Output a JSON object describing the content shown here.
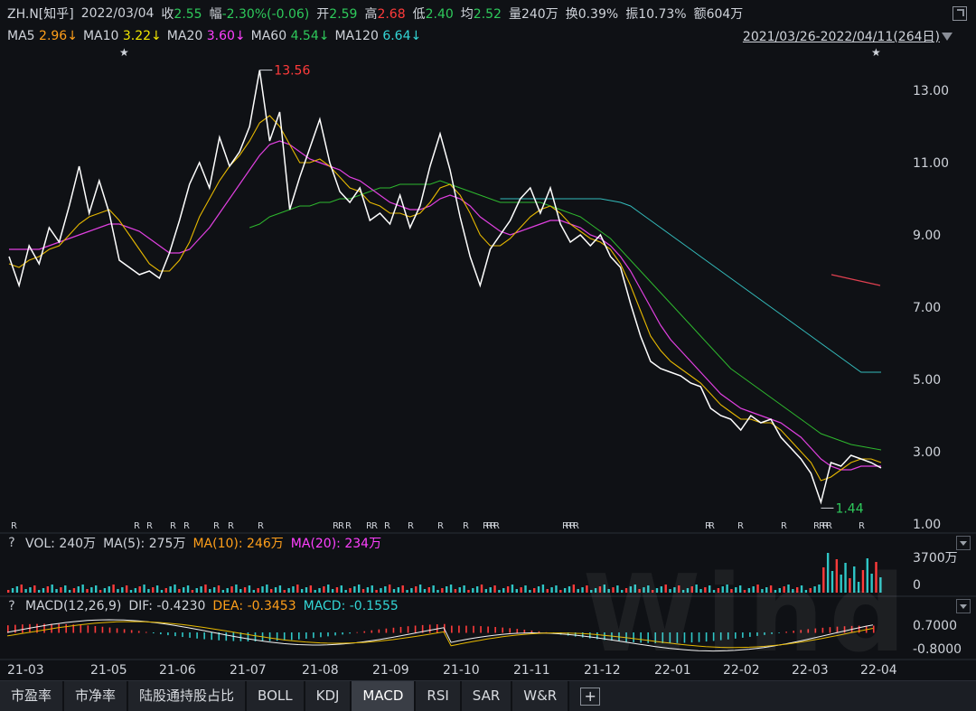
{
  "header": {
    "symbol": "ZH.N[知乎]",
    "date": "2022/03/04",
    "close_label": "收",
    "close": "2.55",
    "range_label": "幅",
    "change": "-2.30%(-0.06)",
    "open_label": "开",
    "open": "2.59",
    "high_label": "高",
    "high": "2.68",
    "low_label": "低",
    "low": "2.40",
    "avg_label": "均",
    "avg": "2.52",
    "vol_label": "量",
    "vol": "240万",
    "turnover_label": "换",
    "turnover": "0.39%",
    "amp_label": "振",
    "amp": "10.73%",
    "amount_label": "额",
    "amount": "604万"
  },
  "ma_bar": {
    "ma5_label": "MA5",
    "ma5": "2.96↓",
    "ma10_label": "MA10",
    "ma10": "3.22↓",
    "ma20_label": "MA20",
    "ma20": "3.60↓",
    "ma60_label": "MA60",
    "ma60": "4.54↓",
    "ma120_label": "MA120",
    "ma120": "6.64↓",
    "date_range": "2021/03/26-2022/04/11(264日)"
  },
  "colors": {
    "price": "#ffffff",
    "ma5": "#f2f2f2",
    "ma10": "#e6b800",
    "ma20": "#e040e0",
    "ma60": "#2eb82e",
    "ma120": "#33bbbb",
    "ma250": "#e04050",
    "up": "#ff3b3b",
    "down": "#2fc6c6",
    "green": "#2ec95b"
  },
  "chart_data": {
    "type": "line",
    "title": "",
    "y_ticks": [
      "13.00",
      "11.00",
      "9.00",
      "7.00",
      "5.00",
      "3.00",
      "1.00"
    ],
    "ylim": [
      1.0,
      14.0
    ],
    "x_tick_labels": [
      "21-03",
      "21-05",
      "21-06",
      "21-07",
      "21-08",
      "21-09",
      "21-10",
      "21-11",
      "21-12",
      "22-01",
      "22-02",
      "22-03",
      "22-04"
    ],
    "max_annotation": "13.56",
    "min_annotation": "1.44",
    "close_series": [
      8.4,
      7.6,
      8.7,
      8.2,
      9.2,
      8.8,
      9.8,
      10.9,
      9.6,
      10.5,
      9.6,
      8.3,
      8.1,
      7.9,
      8.0,
      7.8,
      8.5,
      9.4,
      10.4,
      11.0,
      10.3,
      11.7,
      10.9,
      11.3,
      12.0,
      13.56,
      11.6,
      12.4,
      9.7,
      10.6,
      11.4,
      12.2,
      11.0,
      10.2,
      9.9,
      10.3,
      9.4,
      9.6,
      9.3,
      10.1,
      9.2,
      9.8,
      10.9,
      11.8,
      10.8,
      9.5,
      8.4,
      7.6,
      8.6,
      9.0,
      9.4,
      10.0,
      10.3,
      9.6,
      10.3,
      9.3,
      8.8,
      9.0,
      8.7,
      9.0,
      8.4,
      8.1,
      7.1,
      6.2,
      5.5,
      5.3,
      5.2,
      5.1,
      4.9,
      4.8,
      4.2,
      4.0,
      3.9,
      3.6,
      4.0,
      3.8,
      3.9,
      3.4,
      3.1,
      2.8,
      2.4,
      1.6,
      2.7,
      2.6,
      2.9,
      2.8,
      2.7,
      2.55
    ],
    "ma10_series": [
      8.2,
      8.1,
      8.3,
      8.4,
      8.6,
      8.7,
      9.0,
      9.3,
      9.5,
      9.6,
      9.7,
      9.4,
      9.0,
      8.6,
      8.2,
      8.0,
      8.0,
      8.3,
      8.8,
      9.5,
      10.0,
      10.5,
      10.9,
      11.2,
      11.6,
      12.1,
      12.3,
      12.0,
      11.5,
      11.0,
      11.0,
      11.1,
      10.9,
      10.6,
      10.3,
      10.2,
      9.9,
      9.8,
      9.6,
      9.6,
      9.5,
      9.6,
      9.9,
      10.3,
      10.4,
      10.1,
      9.6,
      9.0,
      8.7,
      8.7,
      8.9,
      9.2,
      9.5,
      9.7,
      9.8,
      9.6,
      9.3,
      9.1,
      8.9,
      8.8,
      8.6,
      8.2,
      7.6,
      6.9,
      6.2,
      5.8,
      5.5,
      5.3,
      5.1,
      4.9,
      4.6,
      4.3,
      4.1,
      3.9,
      3.9,
      3.8,
      3.8,
      3.6,
      3.3,
      3.0,
      2.7,
      2.2,
      2.3,
      2.5,
      2.7,
      2.8,
      2.8,
      2.7
    ],
    "ma20_series": [
      8.6,
      8.6,
      8.6,
      8.6,
      8.7,
      8.8,
      8.9,
      9.0,
      9.1,
      9.2,
      9.3,
      9.3,
      9.2,
      9.1,
      8.9,
      8.7,
      8.5,
      8.5,
      8.6,
      8.9,
      9.2,
      9.6,
      10.0,
      10.4,
      10.8,
      11.2,
      11.5,
      11.6,
      11.5,
      11.3,
      11.1,
      11.0,
      10.9,
      10.8,
      10.6,
      10.5,
      10.3,
      10.1,
      9.9,
      9.8,
      9.7,
      9.7,
      9.8,
      10.0,
      10.1,
      10.0,
      9.8,
      9.5,
      9.3,
      9.1,
      9.0,
      9.1,
      9.2,
      9.3,
      9.4,
      9.4,
      9.3,
      9.2,
      9.0,
      8.9,
      8.7,
      8.4,
      8.0,
      7.5,
      7.0,
      6.5,
      6.1,
      5.8,
      5.5,
      5.2,
      4.9,
      4.6,
      4.4,
      4.2,
      4.1,
      4.0,
      3.9,
      3.8,
      3.6,
      3.4,
      3.1,
      2.8,
      2.6,
      2.5,
      2.5,
      2.6,
      2.6,
      2.6
    ],
    "ma60_series": [
      null,
      null,
      null,
      null,
      null,
      null,
      null,
      null,
      null,
      null,
      null,
      null,
      null,
      null,
      null,
      null,
      null,
      null,
      null,
      null,
      null,
      null,
      null,
      null,
      9.2,
      9.3,
      9.5,
      9.6,
      9.7,
      9.8,
      9.8,
      9.9,
      9.9,
      10.0,
      10.0,
      10.1,
      10.2,
      10.3,
      10.3,
      10.4,
      10.4,
      10.4,
      10.4,
      10.5,
      10.4,
      10.3,
      10.2,
      10.1,
      10.0,
      9.9,
      9.9,
      9.9,
      9.9,
      9.9,
      9.8,
      9.7,
      9.6,
      9.5,
      9.3,
      9.1,
      8.9,
      8.6,
      8.3,
      8.0,
      7.7,
      7.4,
      7.1,
      6.8,
      6.5,
      6.2,
      5.9,
      5.6,
      5.3,
      5.1,
      4.9,
      4.7,
      4.5,
      4.3,
      4.1,
      3.9,
      3.7,
      3.5,
      3.4,
      3.3,
      3.2,
      3.15,
      3.1,
      3.05
    ],
    "ma120_series": [
      null,
      null,
      null,
      null,
      null,
      null,
      null,
      null,
      null,
      null,
      null,
      null,
      null,
      null,
      null,
      null,
      null,
      null,
      null,
      null,
      null,
      null,
      null,
      null,
      null,
      null,
      null,
      null,
      null,
      null,
      null,
      null,
      null,
      null,
      null,
      null,
      null,
      null,
      null,
      null,
      null,
      null,
      null,
      null,
      null,
      null,
      null,
      null,
      null,
      10.0,
      10.0,
      10.0,
      10.0,
      10.0,
      10.0,
      10.0,
      10.0,
      10.0,
      10.0,
      10.0,
      9.95,
      9.9,
      9.8,
      9.6,
      9.4,
      9.2,
      9.0,
      8.8,
      8.6,
      8.4,
      8.2,
      8.0,
      7.8,
      7.6,
      7.4,
      7.2,
      7.0,
      6.8,
      6.6,
      6.4,
      6.2,
      6.0,
      5.8,
      5.6,
      5.4,
      5.2,
      5.2,
      5.2
    ],
    "ma250_series": [
      7.9,
      7.8,
      7.7,
      7.6
    ]
  },
  "volume": {
    "q": "?",
    "label": "VOL:",
    "vol": "240万",
    "ma5_label": "MA(5):",
    "ma5": "275万",
    "ma10_label": "MA(10):",
    "ma10": "246万",
    "ma20_label": "MA(20):",
    "ma20": "234万",
    "y_ticks": [
      "3700万",
      "0"
    ]
  },
  "macd": {
    "q": "?",
    "label": "MACD(12,26,9)",
    "dif_label": "DIF:",
    "dif": "-0.4230",
    "dea_label": "DEA:",
    "dea": "-0.3453",
    "macd_label": "MACD:",
    "macd": "-0.1555",
    "y_ticks": [
      "0.7000",
      "-0.8000"
    ]
  },
  "tabs": [
    {
      "label": "市盈率",
      "active": false
    },
    {
      "label": "市净率",
      "active": false
    },
    {
      "label": "陆股通持股占比",
      "active": false
    },
    {
      "label": "BOLL",
      "active": false
    },
    {
      "label": "KDJ",
      "active": false
    },
    {
      "label": "MACD",
      "active": true
    },
    {
      "label": "RSI",
      "active": false
    },
    {
      "label": "SAR",
      "active": false
    },
    {
      "label": "W&R",
      "active": false
    }
  ],
  "plus_label": "+",
  "watermark": "Wind"
}
